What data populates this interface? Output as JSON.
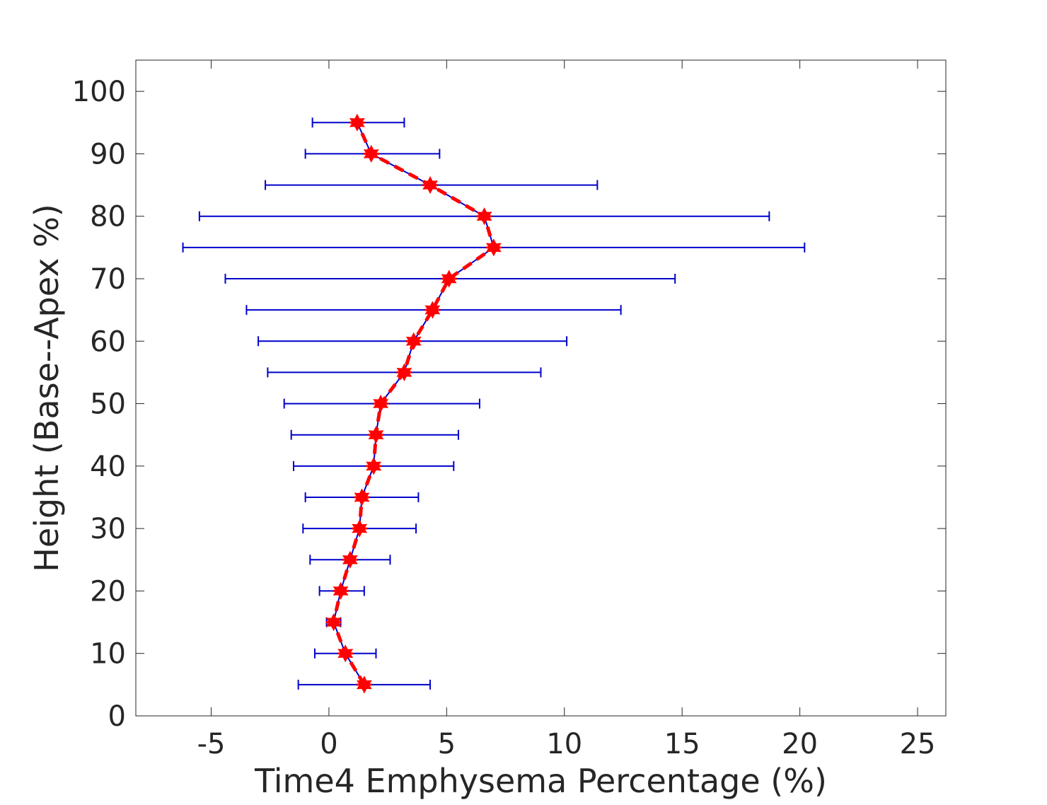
{
  "chart_data": {
    "type": "line",
    "xlabel": "Time4 Emphysema Percentage (%)",
    "ylabel": "Height (Base--Apex %)",
    "xlim": [
      -8.2,
      26.2
    ],
    "ylim": [
      0,
      105
    ],
    "xticks": [
      -5,
      0,
      5,
      10,
      15,
      20,
      25
    ],
    "xtick_labels": [
      "-5",
      "0",
      "5",
      "10",
      "15",
      "20",
      "25"
    ],
    "yticks": [
      0,
      10,
      20,
      30,
      40,
      50,
      60,
      70,
      80,
      90,
      100
    ],
    "ytick_labels": [
      "0",
      "10",
      "20",
      "30",
      "40",
      "50",
      "60",
      "70",
      "80",
      "90",
      "100"
    ],
    "grid": false,
    "box": true,
    "series": [
      {
        "y": [
          5,
          10,
          15,
          20,
          25,
          30,
          35,
          40,
          45,
          50,
          55,
          60,
          65,
          70,
          75,
          80,
          85,
          90,
          95
        ],
        "x": [
          1.5,
          0.7,
          0.2,
          0.5,
          0.9,
          1.3,
          1.4,
          1.9,
          2.0,
          2.2,
          3.2,
          3.6,
          4.4,
          5.1,
          7.0,
          6.6,
          4.3,
          1.8,
          1.2
        ],
        "xerr_low": [
          -1.3,
          -0.6,
          -0.1,
          -0.4,
          -0.8,
          -1.1,
          -1.0,
          -1.5,
          -1.6,
          -1.9,
          -2.6,
          -3.0,
          -3.5,
          -4.4,
          -6.2,
          -5.5,
          -2.7,
          -1.0,
          -0.7
        ],
        "xerr_high": [
          4.3,
          2.0,
          0.5,
          1.5,
          2.6,
          3.7,
          3.8,
          5.3,
          5.5,
          6.4,
          9.0,
          10.1,
          12.4,
          14.7,
          20.2,
          18.7,
          11.4,
          4.7,
          3.2
        ],
        "line_color": "#0000cc",
        "errorbar_color": "#0000cc",
        "marker": "star",
        "marker_color": "#ff0000",
        "overlay_style": "dashed",
        "overlay_color": "#ff0000"
      }
    ]
  }
}
